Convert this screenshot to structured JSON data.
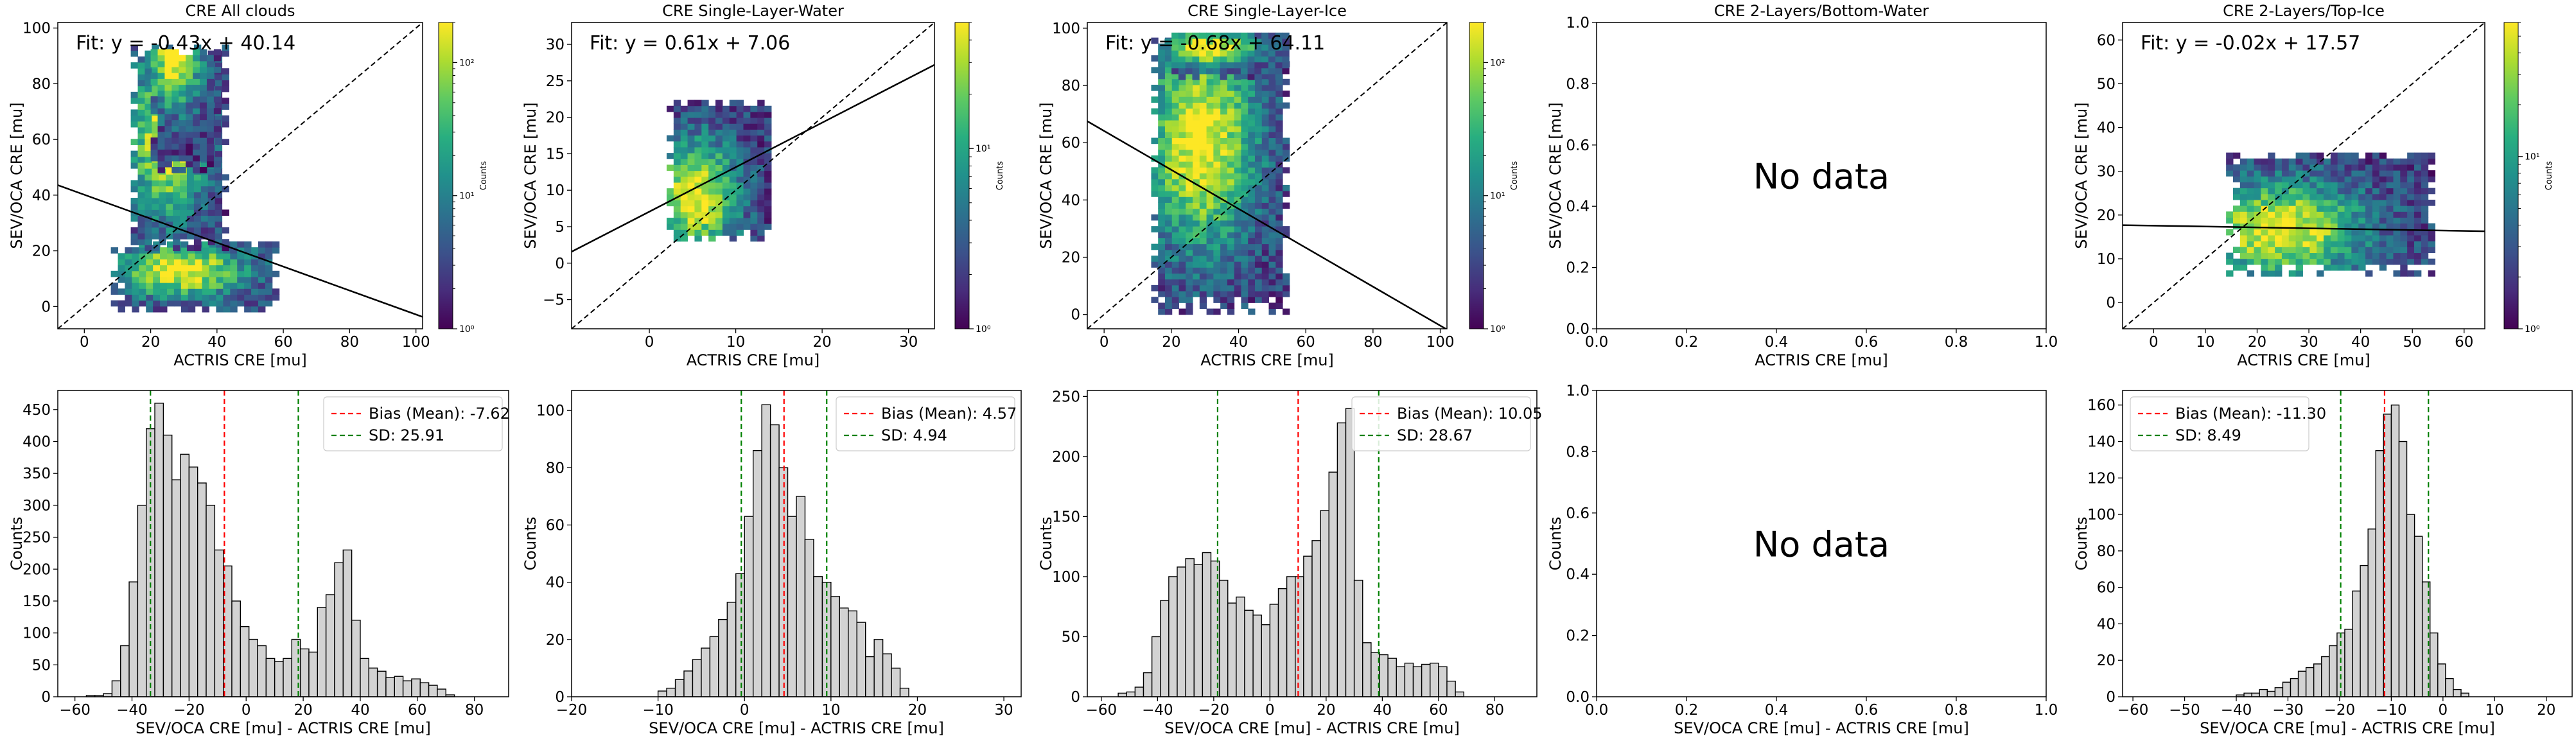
{
  "colors": {
    "fit_line": "#000000",
    "identity_line": "#000000",
    "hist_fill": "#d3d3d3",
    "hist_edge": "#000000",
    "bias_line": "#ff0000",
    "sd_line": "#008000",
    "colormap": [
      "#440154",
      "#472d7b",
      "#3b528b",
      "#2c728e",
      "#21918c",
      "#28ae80",
      "#5ec962",
      "#addc30",
      "#fde725"
    ]
  },
  "colorbar_label": "Counts",
  "no_data_label": "No data",
  "chart_data": [
    {
      "id": "scatter-all-clouds",
      "type": "heatmap",
      "title": "CRE All clouds",
      "xlabel": "ACTRIS CRE [mu]",
      "ylabel": "SEV/OCA CRE [mu]",
      "xlim": [
        -8,
        102
      ],
      "ylim": [
        -8,
        102
      ],
      "xticks": [
        0,
        20,
        40,
        60,
        80,
        100
      ],
      "yticks": [
        0,
        20,
        40,
        60,
        80,
        100
      ],
      "fit_text": "Fit: y = -0.43x + 40.14",
      "fit": {
        "slope": -0.43,
        "intercept": 40.14
      },
      "colorbar": {
        "log": true,
        "min": 1,
        "max": 200,
        "tick_labels": [
          {
            "v": 1,
            "label": "10⁰"
          },
          {
            "v": 10,
            "label": "10¹"
          },
          {
            "v": 100,
            "label": "10²"
          }
        ]
      },
      "clusters": [
        {
          "x": [
            8,
            58
          ],
          "y": [
            -2,
            22
          ],
          "peak": [
            28,
            12
          ]
        },
        {
          "x": [
            14,
            42
          ],
          "y": [
            20,
            92
          ],
          "peak": [
            24,
            60
          ]
        },
        {
          "x": [
            20,
            40
          ],
          "y": [
            48,
            92
          ],
          "peak": [
            26,
            88
          ]
        }
      ]
    },
    {
      "id": "scatter-single-layer-water",
      "type": "heatmap",
      "title": "CRE Single-Layer-Water",
      "xlabel": "ACTRIS CRE [mu]",
      "ylabel": "SEV/OCA CRE [mu]",
      "xlim": [
        -9,
        33
      ],
      "ylim": [
        -9,
        33
      ],
      "xticks": [
        0,
        10,
        20,
        30
      ],
      "yticks": [
        -5,
        0,
        5,
        10,
        15,
        20,
        25,
        30
      ],
      "fit_text": "Fit: y = 0.61x + 7.06",
      "fit": {
        "slope": 0.61,
        "intercept": 7.06
      },
      "colorbar": {
        "log": true,
        "min": 1,
        "max": 50,
        "tick_labels": [
          {
            "v": 1,
            "label": "10⁰"
          },
          {
            "v": 10,
            "label": "10¹"
          }
        ]
      },
      "clusters": [
        {
          "x": [
            2,
            14
          ],
          "y": [
            3,
            22
          ],
          "peak": [
            5,
            9
          ]
        }
      ]
    },
    {
      "id": "scatter-single-layer-ice",
      "type": "heatmap",
      "title": "CRE Single-Layer-Ice",
      "xlabel": "ACTRIS CRE [mu]",
      "ylabel": "SEV/OCA CRE [mu]",
      "xlim": [
        -5,
        102
      ],
      "ylim": [
        -5,
        102
      ],
      "xticks": [
        0,
        20,
        40,
        60,
        80,
        100
      ],
      "yticks": [
        0,
        20,
        40,
        60,
        80,
        100
      ],
      "fit_text": "Fit: y = -0.68x + 64.11",
      "fit": {
        "slope": -0.68,
        "intercept": 64.11
      },
      "colorbar": {
        "log": true,
        "min": 1,
        "max": 200,
        "tick_labels": [
          {
            "v": 1,
            "label": "10⁰"
          },
          {
            "v": 10,
            "label": "10¹"
          },
          {
            "v": 100,
            "label": "10²"
          }
        ]
      },
      "clusters": [
        {
          "x": [
            14,
            55
          ],
          "y": [
            0,
            95
          ],
          "peak": [
            28,
            60
          ]
        },
        {
          "x": [
            18,
            55
          ],
          "y": [
            82,
            98
          ],
          "peak": [
            30,
            92
          ]
        }
      ]
    },
    {
      "id": "scatter-2-layers-bottom-water",
      "type": "heatmap",
      "title": "CRE 2-Layers/Bottom-Water",
      "xlabel": "ACTRIS CRE [mu]",
      "ylabel": "SEV/OCA CRE [mu]",
      "xlim": [
        0,
        1
      ],
      "ylim": [
        0,
        1
      ],
      "xticks": [
        0.0,
        0.2,
        0.4,
        0.6,
        0.8,
        1.0
      ],
      "yticks": [
        0.0,
        0.2,
        0.4,
        0.6,
        0.8,
        1.0
      ],
      "empty": true
    },
    {
      "id": "scatter-2-layers-top-ice",
      "type": "heatmap",
      "title": "CRE 2-Layers/Top-Ice",
      "xlabel": "ACTRIS CRE [mu]",
      "ylabel": "SEV/OCA CRE [mu]",
      "xlim": [
        -6,
        64
      ],
      "ylim": [
        -6,
        64
      ],
      "xticks": [
        0,
        10,
        20,
        30,
        40,
        50,
        60
      ],
      "yticks": [
        0,
        10,
        20,
        30,
        40,
        50,
        60
      ],
      "fit_text": "Fit: y = -0.02x + 17.57",
      "fit": {
        "slope": -0.02,
        "intercept": 17.57
      },
      "colorbar": {
        "log": true,
        "min": 1,
        "max": 60,
        "tick_labels": [
          {
            "v": 1,
            "label": "10⁰"
          },
          {
            "v": 10,
            "label": "10¹"
          }
        ]
      },
      "clusters": [
        {
          "x": [
            14,
            54
          ],
          "y": [
            6,
            33
          ],
          "peak": [
            24,
            16
          ]
        }
      ]
    },
    {
      "id": "hist-all-clouds",
      "type": "bar",
      "xlabel": "SEV/OCA CRE [mu] - ACTRIS CRE [mu]",
      "ylabel": "Counts",
      "xlim": [
        -66,
        92
      ],
      "ylim": [
        0,
        480
      ],
      "xticks": [
        -60,
        -40,
        -20,
        0,
        20,
        40,
        60,
        80
      ],
      "yticks": [
        0,
        50,
        100,
        150,
        200,
        250,
        300,
        350,
        400,
        450
      ],
      "bin_start": -56,
      "bin_width": 3,
      "counts": [
        2,
        2,
        5,
        25,
        80,
        180,
        300,
        420,
        460,
        410,
        340,
        380,
        360,
        335,
        300,
        230,
        205,
        150,
        110,
        90,
        80,
        60,
        55,
        60,
        90,
        75,
        70,
        140,
        160,
        210,
        230,
        120,
        60,
        45,
        40,
        30,
        32,
        25,
        28,
        22,
        18,
        12,
        3
      ],
      "bias": -7.62,
      "sd": 25.91,
      "legend": [
        "Bias (Mean): -7.62",
        "SD: 25.91"
      ]
    },
    {
      "id": "hist-single-layer-water",
      "type": "bar",
      "xlabel": "SEV/OCA CRE [mu] - ACTRIS CRE [mu]",
      "ylabel": "Counts",
      "xlim": [
        -20,
        32
      ],
      "ylim": [
        0,
        107
      ],
      "xticks": [
        -20,
        -10,
        0,
        10,
        20,
        30
      ],
      "yticks": [
        0,
        20,
        40,
        60,
        80,
        100
      ],
      "bin_start": -10,
      "bin_width": 1,
      "counts": [
        2,
        3,
        6,
        9,
        13,
        17,
        21,
        27,
        33,
        43,
        63,
        86,
        102,
        95,
        80,
        63,
        70,
        55,
        42,
        40,
        35,
        31,
        30,
        26,
        14,
        20,
        15,
        10,
        3
      ],
      "bias": 4.57,
      "sd": 4.94,
      "legend": [
        "Bias (Mean): 4.57",
        "SD: 4.94"
      ]
    },
    {
      "id": "hist-single-layer-ice",
      "type": "bar",
      "xlabel": "SEV/OCA CRE [mu] - ACTRIS CRE [mu]",
      "ylabel": "Counts",
      "xlim": [
        -65,
        95
      ],
      "ylim": [
        0,
        255
      ],
      "xticks": [
        -60,
        -40,
        -20,
        0,
        20,
        40,
        60,
        80
      ],
      "yticks": [
        0,
        50,
        100,
        150,
        200,
        250
      ],
      "bin_start": -54,
      "bin_width": 3,
      "counts": [
        3,
        4,
        8,
        20,
        50,
        80,
        100,
        108,
        115,
        110,
        120,
        113,
        97,
        78,
        83,
        72,
        68,
        60,
        77,
        90,
        100,
        100,
        117,
        130,
        155,
        187,
        228,
        240,
        97,
        45,
        37,
        35,
        32,
        25,
        28,
        25,
        27,
        28,
        25,
        13,
        4
      ],
      "bias": 10.05,
      "sd": 28.67,
      "legend": [
        "Bias (Mean): 10.05",
        "SD: 28.67"
      ]
    },
    {
      "id": "hist-2-layers-bottom-water",
      "type": "bar",
      "xlabel": "SEV/OCA CRE [mu] - ACTRIS CRE [mu]",
      "ylabel": "Counts",
      "xlim": [
        0,
        1
      ],
      "ylim": [
        0,
        1
      ],
      "xticks": [
        0.0,
        0.2,
        0.4,
        0.6,
        0.8,
        1.0
      ],
      "yticks": [
        0.0,
        0.2,
        0.4,
        0.6,
        0.8,
        1.0
      ],
      "empty": true
    },
    {
      "id": "hist-2-layers-top-ice",
      "type": "bar",
      "xlabel": "SEV/OCA CRE [mu] - ACTRIS CRE [mu]",
      "ylabel": "Counts",
      "xlim": [
        -62,
        25
      ],
      "ylim": [
        0,
        168
      ],
      "xticks": [
        -60,
        -50,
        -40,
        -30,
        -20,
        -10,
        0,
        10,
        20
      ],
      "yticks": [
        0,
        20,
        40,
        60,
        80,
        100,
        120,
        140,
        160
      ],
      "bin_start": -40,
      "bin_width": 1.5,
      "counts": [
        1,
        2,
        2,
        4,
        3,
        5,
        8,
        10,
        14,
        16,
        18,
        22,
        28,
        35,
        37,
        58,
        72,
        92,
        135,
        155,
        160,
        140,
        100,
        88,
        63,
        35,
        18,
        10,
        4,
        2
      ],
      "bias": -11.3,
      "sd": 8.49,
      "legend": [
        "Bias (Mean): -11.30",
        "SD: 8.49"
      ]
    }
  ]
}
